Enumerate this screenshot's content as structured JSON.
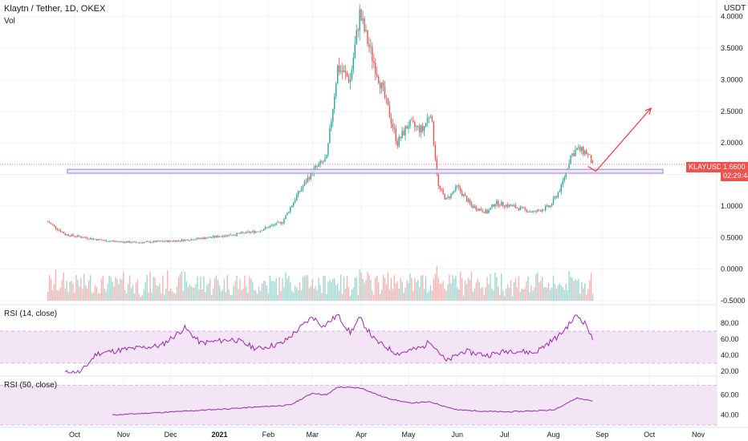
{
  "header": {
    "symbol_title": "Klaytn / Tether, 1D, OKEX",
    "volume_label": "Vol",
    "rsi1_label": "RSI (14, close)",
    "rsi2_label": "RSI (50, close)",
    "currency": "USDT"
  },
  "price_tag": {
    "symbol": "KLAYUSDT",
    "price": "1.6600",
    "countdown": "02:29:44"
  },
  "colors": {
    "up": "#26a69a",
    "down": "#ef5350",
    "rsi_line": "#9c27b0",
    "rsi_fill": "#f3e5f5",
    "zone": "#b39ddb",
    "arrow": "#f23645",
    "grid": "#f0f3fa",
    "axis_text": "#131722"
  },
  "chart_data": [
    {
      "type": "candlestick",
      "title": "Klaytn / Tether, 1D, OKEX",
      "x_ticks": [
        "Oct",
        "Nov",
        "Dec",
        "2021",
        "Feb",
        "Mar",
        "Apr",
        "May",
        "Jun",
        "Jul",
        "Aug",
        "Sep",
        "Oct",
        "Nov"
      ],
      "y_ticks": [
        "4.0000",
        "3.5000",
        "3.0000",
        "2.5000",
        "2.0000",
        "1.5000",
        "1.0000",
        "0.5000",
        "0.0000",
        "-0.5000"
      ],
      "ylim": [
        -0.5,
        4.2
      ],
      "anchors": [
        {
          "date": "Sep 14",
          "close": 0.75
        },
        {
          "date": "Sep 25",
          "close": 0.55
        },
        {
          "date": "Oct 20",
          "close": 0.45
        },
        {
          "date": "Nov 10",
          "close": 0.42
        },
        {
          "date": "Dec 5",
          "close": 0.45
        },
        {
          "date": "Dec 25",
          "close": 0.5
        },
        {
          "date": "Jan 10",
          "close": 0.55
        },
        {
          "date": "Jan 25",
          "close": 0.6
        },
        {
          "date": "Feb 10",
          "close": 0.75
        },
        {
          "date": "Feb 20",
          "close": 1.2
        },
        {
          "date": "Mar 1",
          "close": 1.55
        },
        {
          "date": "Mar 10",
          "close": 1.75
        },
        {
          "date": "Mar 17",
          "close": 3.2
        },
        {
          "date": "Mar 25",
          "close": 3.0
        },
        {
          "date": "Mar 31",
          "close": 4.05
        },
        {
          "date": "Apr 5",
          "close": 3.6
        },
        {
          "date": "Apr 15",
          "close": 2.8
        },
        {
          "date": "Apr 24",
          "close": 2.0
        },
        {
          "date": "May 1",
          "close": 2.3
        },
        {
          "date": "May 10",
          "close": 2.2
        },
        {
          "date": "May 15",
          "close": 2.5
        },
        {
          "date": "May 20",
          "close": 1.3
        },
        {
          "date": "May 25",
          "close": 1.1
        },
        {
          "date": "Jun 1",
          "close": 1.3
        },
        {
          "date": "Jun 10",
          "close": 1.0
        },
        {
          "date": "Jun 20",
          "close": 0.9
        },
        {
          "date": "Jun 25",
          "close": 1.05
        },
        {
          "date": "Jul 5",
          "close": 1.0
        },
        {
          "date": "Jul 20",
          "close": 0.9
        },
        {
          "date": "Jul 30",
          "close": 1.0
        },
        {
          "date": "Aug 6",
          "close": 1.3
        },
        {
          "date": "Aug 12",
          "close": 1.8
        },
        {
          "date": "Aug 16",
          "close": 1.9
        },
        {
          "date": "Aug 22",
          "close": 1.85
        },
        {
          "date": "Aug 26",
          "close": 1.66
        }
      ],
      "support_zone": {
        "low": 1.52,
        "high": 1.58
      },
      "forecast_arrow": {
        "from": {
          "date": "Aug 28",
          "price": 1.55
        },
        "to": {
          "date": "Oct 2",
          "price": 2.55
        }
      }
    },
    {
      "type": "line",
      "title": "RSI (14, close)",
      "y_ticks": [
        "80.00",
        "60.00",
        "40.00",
        "20.00"
      ],
      "ylim": [
        18,
        98
      ],
      "band": [
        30,
        70
      ],
      "anchors": [
        {
          "date": "Sep 25",
          "value": 18
        },
        {
          "date": "Oct 5",
          "value": 19
        },
        {
          "date": "Oct 15",
          "value": 42
        },
        {
          "date": "Nov 1",
          "value": 47
        },
        {
          "date": "Nov 25",
          "value": 52
        },
        {
          "date": "Dec 10",
          "value": 74
        },
        {
          "date": "Dec 20",
          "value": 55
        },
        {
          "date": "Jan 10",
          "value": 60
        },
        {
          "date": "Jan 25",
          "value": 48
        },
        {
          "date": "Feb 10",
          "value": 55
        },
        {
          "date": "Feb 20",
          "value": 72
        },
        {
          "date": "Mar 1",
          "value": 88
        },
        {
          "date": "Mar 8",
          "value": 76
        },
        {
          "date": "Mar 17",
          "value": 90
        },
        {
          "date": "Mar 25",
          "value": 68
        },
        {
          "date": "Mar 31",
          "value": 86
        },
        {
          "date": "Apr 10",
          "value": 58
        },
        {
          "date": "Apr 24",
          "value": 42
        },
        {
          "date": "May 10",
          "value": 50
        },
        {
          "date": "May 15",
          "value": 58
        },
        {
          "date": "May 25",
          "value": 32
        },
        {
          "date": "Jun 5",
          "value": 45
        },
        {
          "date": "Jun 20",
          "value": 40
        },
        {
          "date": "Jul 5",
          "value": 46
        },
        {
          "date": "Jul 20",
          "value": 43
        },
        {
          "date": "Aug 5",
          "value": 65
        },
        {
          "date": "Aug 16",
          "value": 90
        },
        {
          "date": "Aug 22",
          "value": 78
        },
        {
          "date": "Aug 26",
          "value": 58
        }
      ]
    },
    {
      "type": "line",
      "title": "RSI (50, close)",
      "y_ticks": [
        "60.00",
        "40.00"
      ],
      "ylim": [
        30,
        75
      ],
      "band": [
        30,
        70
      ],
      "anchors": [
        {
          "date": "Oct 25",
          "value": 40
        },
        {
          "date": "Dec 1",
          "value": 43
        },
        {
          "date": "Jan 15",
          "value": 47
        },
        {
          "date": "Feb 15",
          "value": 50
        },
        {
          "date": "Mar 1",
          "value": 62
        },
        {
          "date": "Mar 10",
          "value": 60
        },
        {
          "date": "Mar 17",
          "value": 68
        },
        {
          "date": "Apr 1",
          "value": 67
        },
        {
          "date": "Apr 15",
          "value": 58
        },
        {
          "date": "May 1",
          "value": 52
        },
        {
          "date": "May 15",
          "value": 53
        },
        {
          "date": "Jun 1",
          "value": 45
        },
        {
          "date": "Jul 1",
          "value": 43
        },
        {
          "date": "Aug 1",
          "value": 45
        },
        {
          "date": "Aug 16",
          "value": 57
        },
        {
          "date": "Aug 26",
          "value": 54
        }
      ]
    }
  ]
}
